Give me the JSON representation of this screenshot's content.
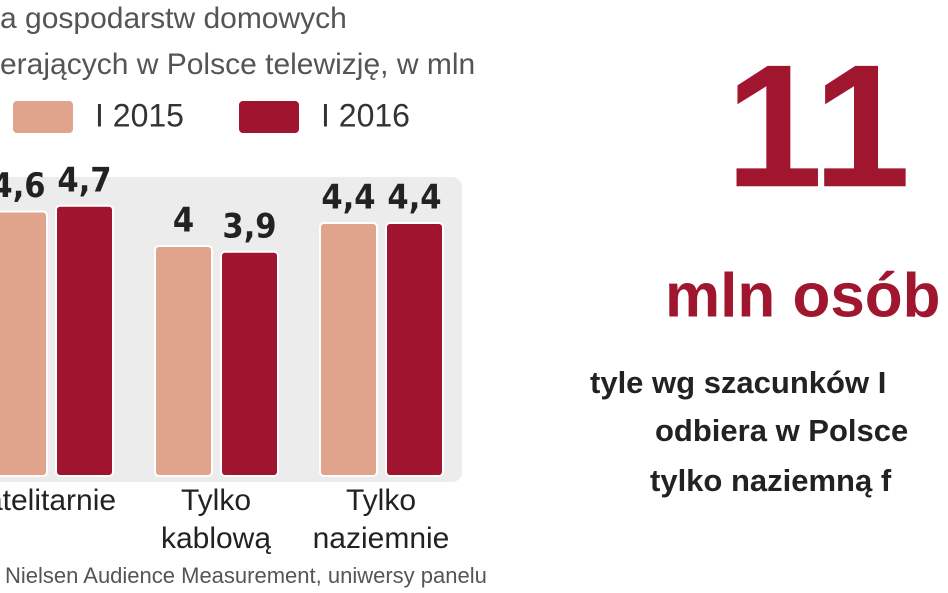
{
  "chart_data": {
    "type": "bar",
    "title": [
      "a gospodarstw domowych",
      "erających w Polsce telewizję, w mln"
    ],
    "categories": [
      "atelitarnie",
      "Tylko\nkablową",
      "Tylko\nnaziemnie"
    ],
    "series": [
      {
        "name": "I 2015",
        "color": "#e0a38b",
        "values": [
          4.6,
          4,
          4.4
        ],
        "value_labels": [
          "4,6",
          "4",
          "4,4"
        ]
      },
      {
        "name": "I 2016",
        "color": "#a0142f",
        "values": [
          4.7,
          3.9,
          4.4
        ],
        "value_labels": [
          "4,7",
          "3,9",
          "4,4"
        ]
      }
    ],
    "ylim": [
      0,
      5.2
    ],
    "source": "Nielsen Audience Measurement, uniwersy panelu"
  },
  "highlight": {
    "number": "11",
    "unit": "mln osób",
    "text": [
      "tyle wg szacunków I",
      "odbiera w Polsce",
      "tylko naziemną f"
    ]
  }
}
